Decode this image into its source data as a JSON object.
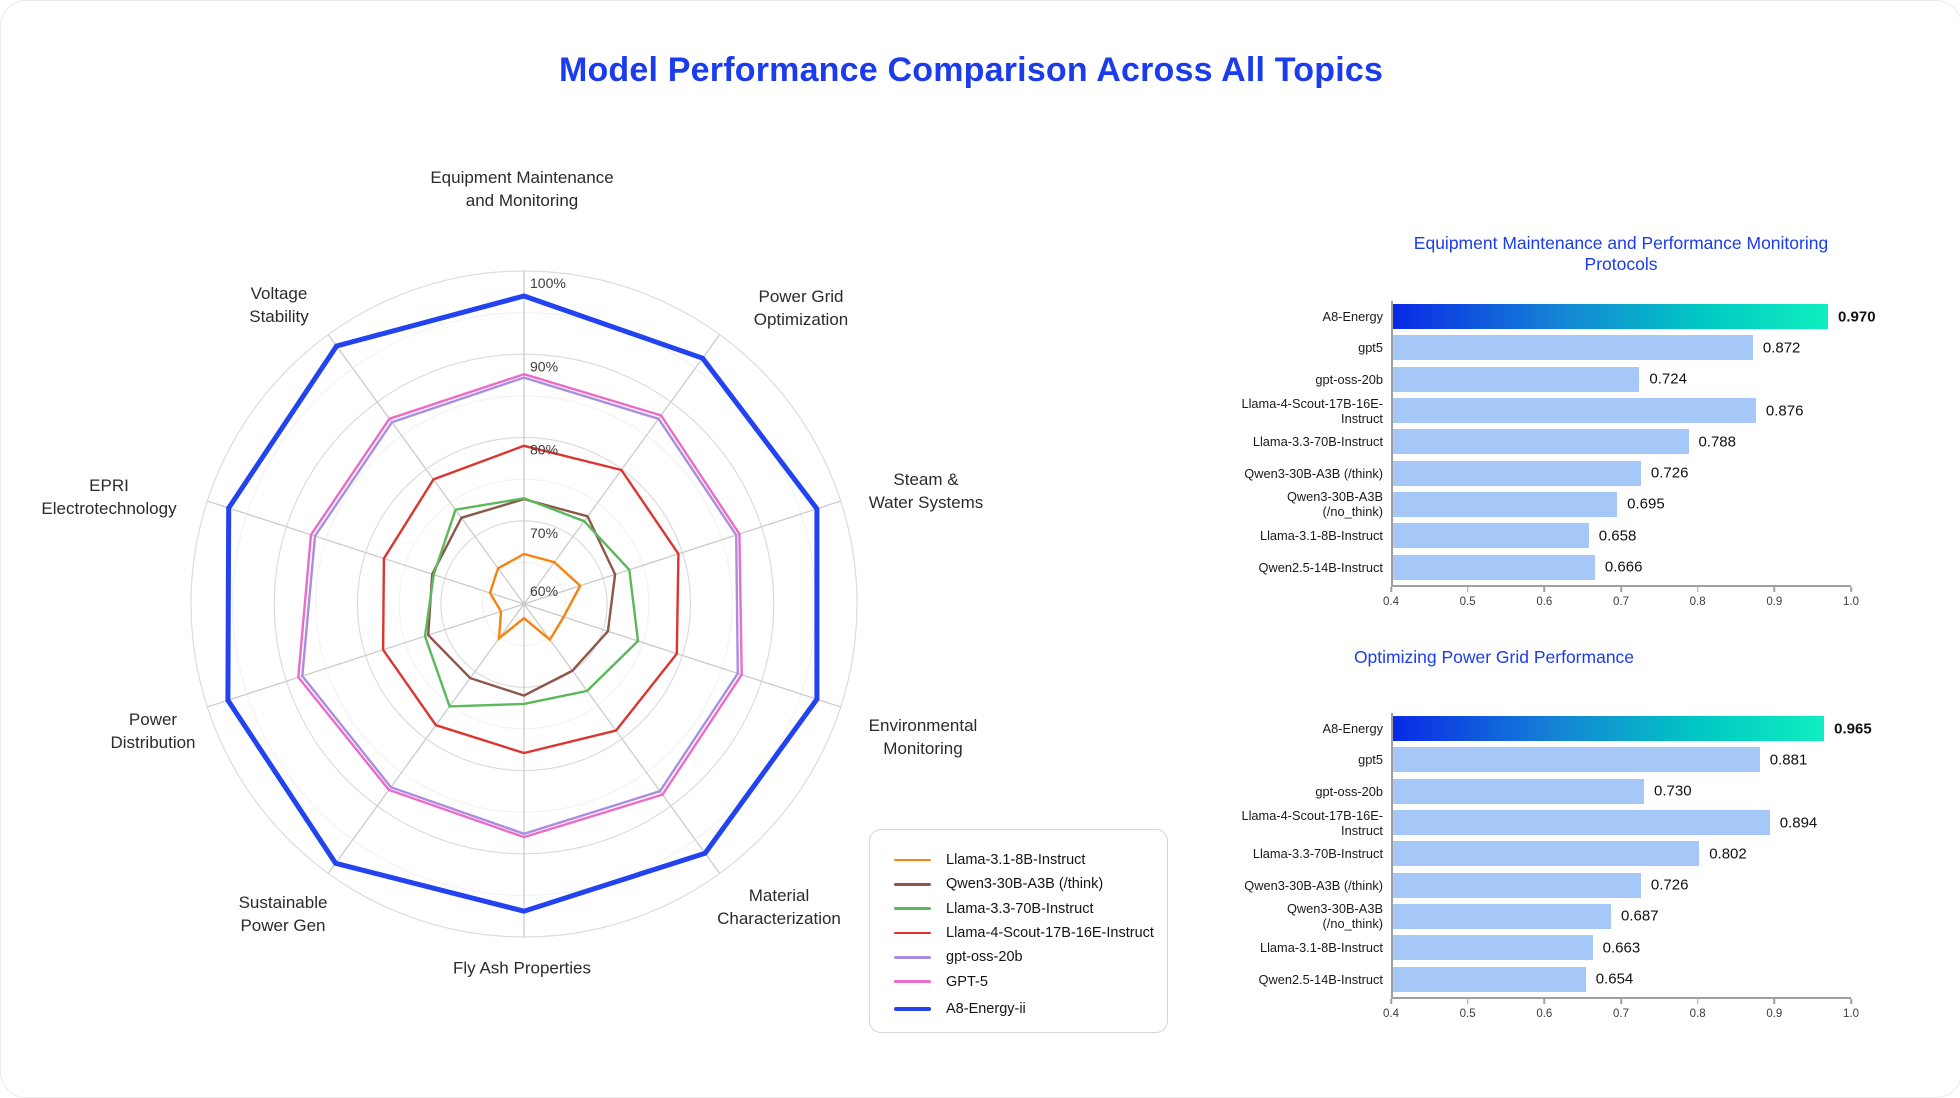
{
  "page_title": "Model Performance Comparison Across All Topics",
  "colors": {
    "title_blue": "#1b3cec",
    "bar_light_blue": "#a6c8f8",
    "highlight_gradient": [
      "#0a28e6",
      "#1583d6",
      "#00c9c2",
      "#10eec0"
    ],
    "grid_ring_major": "#dcdcdc",
    "grid_ring_minor": "#f0f0f0",
    "grid_spoke": "#c8c8c8"
  },
  "chart_data": [
    {
      "type": "radar",
      "title": "Model Performance Comparison Across All Topics",
      "rmin": 60,
      "rmax": 100,
      "tick_labels": [
        "100%",
        "90%",
        "80%",
        "70%",
        "60%"
      ],
      "grid": "circular, rings every 5%, labeled every 10%",
      "axes": [
        {
          "label": "Equipment Maintenance and Monitoring",
          "lines": [
            "Equipment Maintenance",
            "and Monitoring"
          ]
        },
        {
          "label": "Power Grid Optimization",
          "lines": [
            "Power Grid",
            "Optimization"
          ]
        },
        {
          "label": "Steam & Water Systems",
          "lines": [
            "Steam &",
            "Water Systems"
          ]
        },
        {
          "label": "Environmental Monitoring",
          "lines": [
            "Environmental",
            "Monitoring"
          ]
        },
        {
          "label": "Material Characterization",
          "lines": [
            "Material",
            "Characterization"
          ]
        },
        {
          "label": "Fly Ash Properties",
          "lines": [
            "Fly Ash Properties"
          ]
        },
        {
          "label": "Sustainable Power Gen",
          "lines": [
            "Sustainable",
            "Power Gen"
          ]
        },
        {
          "label": "Power Distribution",
          "lines": [
            "Power",
            "Distribution"
          ]
        },
        {
          "label": "EPRI Electrotechnology",
          "lines": [
            "EPRI",
            "Electrotechnology"
          ]
        },
        {
          "label": "Voltage Stability",
          "lines": [
            "Voltage",
            "Stability"
          ]
        }
      ],
      "series": [
        {
          "name": "Llama-3.1-8B-Instruct",
          "color": "#f8820e",
          "width": 2.4,
          "values": [
            66.0,
            66.2,
            67.1,
            65.0,
            65.3,
            61.7,
            65.1,
            62.9,
            64.3,
            65.3
          ]
        },
        {
          "name": "Qwen3-30B-A3B (/think)",
          "color": "#8c564b",
          "width": 2.4,
          "values": [
            72.6,
            73.0,
            71.5,
            70.6,
            69.9,
            71.0,
            71.0,
            72.1,
            71.6,
            72.8
          ]
        },
        {
          "name": "Llama-3.3-70B-Instruct",
          "color": "#5cb85c",
          "width": 2.4,
          "values": [
            72.7,
            72.3,
            73.3,
            74.4,
            72.9,
            72.0,
            75.2,
            72.5,
            71.4,
            74.0
          ]
        },
        {
          "name": "Llama-4-Scout-17B-16E-Instruct",
          "color": "#dc3530",
          "width": 2.4,
          "values": [
            79.0,
            79.9,
            79.5,
            79.3,
            78.8,
            77.9,
            78.0,
            77.8,
            77.7,
            78.5
          ]
        },
        {
          "name": "gpt-oss-20b",
          "color": "#ab8de0",
          "width": 2.4,
          "values": [
            87.2,
            87.5,
            86.8,
            87.0,
            87.8,
            87.6,
            87.2,
            88.0,
            86.4,
            87.0
          ]
        },
        {
          "name": "GPT-5",
          "color": "#ec6ac8",
          "width": 2.4,
          "values": [
            87.6,
            88.0,
            87.2,
            87.5,
            88.3,
            88.0,
            87.6,
            88.5,
            86.9,
            87.5
          ]
        },
        {
          "name": "A8-Energy-ii",
          "color": "#2342f0",
          "width": 5.0,
          "values": [
            97.0,
            96.5,
            97.0,
            97.0,
            97.0,
            96.9,
            98.5,
            97.4,
            97.3,
            98.3
          ]
        }
      ],
      "legend_position": "bottom-center card"
    },
    {
      "type": "bar",
      "title": "Equipment Maintenance and Performance Monitoring Protocols",
      "orientation": "horizontal",
      "xlim": [
        0.4,
        1.0
      ],
      "x_ticks": [
        "0.4",
        "0.5",
        "0.6",
        "0.7",
        "0.8",
        "0.9",
        "1.0"
      ],
      "categories": [
        "A8-Energy",
        "gpt5",
        "gpt-oss-20b",
        "Llama-4-Scout-17B-16E-Instruct",
        "Llama-3.3-70B-Instruct",
        "Qwen3-30B-A3B (/think)",
        "Qwen3-30B-A3B (/no_think)",
        "Llama-3.1-8B-Instruct",
        "Qwen2.5-14B-Instruct"
      ],
      "values": [
        0.97,
        0.872,
        0.724,
        0.876,
        0.788,
        0.726,
        0.695,
        0.658,
        0.666
      ],
      "value_labels": [
        "0.970",
        "0.872",
        "0.724",
        "0.876",
        "0.788",
        "0.726",
        "0.695",
        "0.658",
        "0.666"
      ],
      "highlight_row": 0
    },
    {
      "type": "bar",
      "title": "Optimizing Power Grid Performance",
      "orientation": "horizontal",
      "xlim": [
        0.4,
        1.0
      ],
      "x_ticks": [
        "0.4",
        "0.5",
        "0.6",
        "0.7",
        "0.8",
        "0.9",
        "1.0"
      ],
      "categories": [
        "A8-Energy",
        "gpt5",
        "gpt-oss-20b",
        "Llama-4-Scout-17B-16E-Instruct",
        "Llama-3.3-70B-Instruct",
        "Qwen3-30B-A3B (/think)",
        "Qwen3-30B-A3B (/no_think)",
        "Llama-3.1-8B-Instruct",
        "Qwen2.5-14B-Instruct"
      ],
      "values": [
        0.965,
        0.881,
        0.73,
        0.894,
        0.802,
        0.726,
        0.687,
        0.663,
        0.654
      ],
      "value_labels": [
        "0.965",
        "0.881",
        "0.730",
        "0.894",
        "0.802",
        "0.726",
        "0.687",
        "0.663",
        "0.654"
      ],
      "highlight_row": 0
    }
  ]
}
